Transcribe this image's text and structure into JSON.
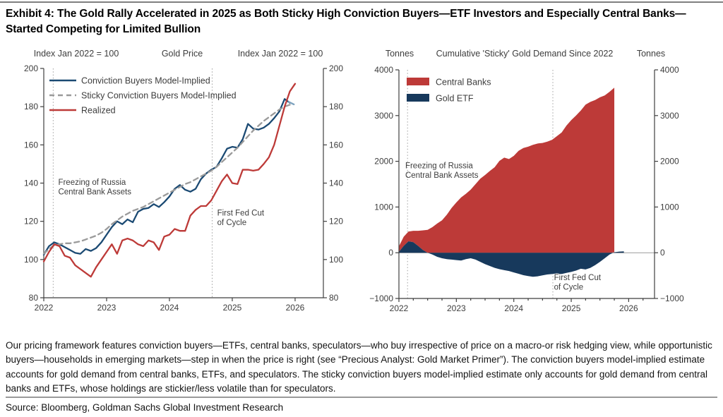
{
  "title": "Exhibit 4: The Gold Rally Accelerated in 2025 as Both Sticky High Conviction Buyers—ETF Investors and Especially Central Banks—Started Competing for Limited Bullion",
  "note": "Our pricing framework features conviction buyers—ETFs, central banks, speculators—who buy irrespective of price on a macro-or risk hedging view, while opportunistic buyers—households in emerging markets—step in when the price is right (see “Precious Analyst: Gold Market Primer”). The conviction buyers model-implied estimate accounts for gold demand from central banks, ETFs, and speculators. The sticky conviction buyers model-implied estimate only accounts for gold demand from central banks and ETFs, whose holdings are stickier/less volatile than for speculators.",
  "source": "Source: Bloomberg, Goldman Sachs Global Investment Research",
  "colors": {
    "line_blue": "#1b4a73",
    "line_blue_tip": "#7fa3bf",
    "dash_gray": "#9a9a9a",
    "red": "#bd3a38",
    "navy_fill": "#17395c",
    "axis": "#3f3f3f",
    "text": "#3d3d3d",
    "dotted_line": "#a0a0a0",
    "zero_line": "#9a9a9a"
  },
  "chart_data": [
    {
      "type": "line",
      "title": "Gold Price",
      "header_left": "Index Jan 2022 = 100",
      "header_center": "Gold Price",
      "header_right": "Index Jan 2022 = 100",
      "xlim": [
        2022,
        2026.45
      ],
      "ylim": [
        80,
        200
      ],
      "ytick_step": 20,
      "xticks": [
        2022,
        2023,
        2024,
        2025,
        2026
      ],
      "grid": false,
      "legend_position": "top-left-inside",
      "vlines": [
        2022.15,
        2024.68
      ],
      "annotations": [
        {
          "x": 2022.23,
          "y": 139,
          "lines": [
            "Freezing of Russia",
            "Central Bank Assets"
          ]
        },
        {
          "x": 2024.76,
          "y": 123,
          "lines": [
            "First Fed Cut",
            "of Cycle"
          ]
        }
      ],
      "series": [
        {
          "name": "Conviction Buyers Model-Implied",
          "style": "solid",
          "color_key": "line_blue",
          "in_legend": true,
          "x_start": 2022.0,
          "x_step": 0.083333,
          "values": [
            102.5,
            107,
            109,
            108,
            106.5,
            105,
            103.5,
            103,
            105.5,
            104.5,
            106,
            109,
            113,
            117,
            120,
            118.5,
            121,
            119.5,
            125,
            126.5,
            127,
            129,
            127.5,
            130,
            133,
            137,
            139,
            136.5,
            135.5,
            137,
            142,
            145,
            147,
            148.5,
            153,
            158,
            159,
            158.5,
            163,
            171,
            168.5,
            168,
            169,
            171,
            174,
            177.5,
            184,
            182
          ]
        },
        {
          "name": "Sticky Conviction Buyers Model-Implied",
          "style": "dash",
          "color_key": "dash_gray",
          "in_legend": true,
          "x_start": 2022.0,
          "x_step": 0.083333,
          "values": [
            103,
            105.5,
            107.5,
            108,
            108.5,
            108.5,
            109,
            109.5,
            110.5,
            111.5,
            112.5,
            114,
            116,
            118.5,
            120.5,
            122.5,
            124,
            125.5,
            126.5,
            127.5,
            129,
            130.5,
            132,
            133.5,
            135,
            136.5,
            138,
            139.5,
            140.5,
            142,
            143.5,
            145,
            146.5,
            148.5,
            151,
            153.5,
            156,
            158.5,
            161.5,
            164.5,
            167.5,
            170,
            172.5,
            174.5,
            176.5,
            178.5,
            180,
            181
          ]
        },
        {
          "name": "Realized",
          "style": "solid",
          "color_key": "red",
          "in_legend": true,
          "x_start": 2022.0,
          "x_step": 0.083333,
          "values": [
            99,
            104,
            108,
            107,
            102,
            101,
            97,
            95,
            93,
            91,
            96,
            100,
            104,
            108,
            103,
            110,
            111,
            110,
            108,
            107,
            110,
            109,
            105,
            112,
            113,
            116,
            115,
            115,
            123,
            126,
            128,
            128,
            131,
            136,
            141,
            144.5,
            140,
            139.5,
            147,
            147,
            146.5,
            147,
            150,
            153.5,
            160,
            170,
            180,
            188,
            192
          ]
        },
        {
          "name": "Latest Point Marker",
          "style": "solid",
          "color_key": "line_blue_tip",
          "in_legend": false,
          "x_start": 2025.9,
          "x_step": 0.08,
          "values": [
            182.5,
            181.2
          ]
        }
      ]
    },
    {
      "type": "area",
      "title": "Cumulative 'Sticky' Gold Demand Since 2022",
      "header_left": "Tonnes",
      "header_center": "Cumulative 'Sticky' Gold Demand Since 2022",
      "header_right": "Tonnes",
      "xlim": [
        2022,
        2026.45
      ],
      "ylim": [
        -1000,
        4000
      ],
      "ytick_step": 1000,
      "xticks": [
        2022,
        2023,
        2024,
        2025,
        2026
      ],
      "xminor_step": 0.25,
      "zero_line": true,
      "grid": false,
      "legend_position": "top-left-inside",
      "vlines": [
        2022.15,
        2024.68
      ],
      "annotations": [
        {
          "x": 2022.11,
          "y": 1850,
          "lines": [
            "Freezing of Russia",
            "Central Bank Assets"
          ]
        },
        {
          "x": 2024.7,
          "y": -600,
          "lines": [
            "First Fed Cut",
            "of Cycle"
          ]
        }
      ],
      "areas": {
        "etf": {
          "name": "Gold ETF",
          "color_key": "navy_fill",
          "x_start": 2022.0,
          "x_step": 0.083333,
          "values": [
            20,
            150,
            250,
            230,
            150,
            60,
            0,
            -40,
            -90,
            -120,
            -140,
            -150,
            -160,
            -170,
            -140,
            -120,
            -150,
            -200,
            -250,
            -290,
            -330,
            -360,
            -380,
            -400,
            -430,
            -460,
            -490,
            -510,
            -525,
            -515,
            -495,
            -475,
            -465,
            -450,
            -465,
            -440,
            -420,
            -390,
            -350,
            -365,
            -330,
            -270,
            -200,
            -120,
            -40,
            10,
            25,
            30
          ]
        },
        "central_banks": {
          "name": "Central Banks",
          "color_key": "red",
          "x_start": 2022.0,
          "x_step": 0.083333,
          "values": [
            120,
            200,
            215,
            250,
            330,
            430,
            500,
            560,
            640,
            710,
            830,
            980,
            1100,
            1210,
            1290,
            1380,
            1500,
            1620,
            1700,
            1790,
            1870,
            2010,
            2080,
            2050,
            2120,
            2230,
            2290,
            2320,
            2360,
            2390,
            2400,
            2430,
            2470,
            2550,
            2630,
            2780,
            2900,
            3000,
            3110,
            3240,
            3300,
            3340,
            3400,
            3440,
            3520,
            3600
          ]
        }
      },
      "legend": [
        {
          "name": "Central Banks",
          "color_key": "red"
        },
        {
          "name": "Gold ETF",
          "color_key": "navy_fill"
        }
      ]
    }
  ]
}
